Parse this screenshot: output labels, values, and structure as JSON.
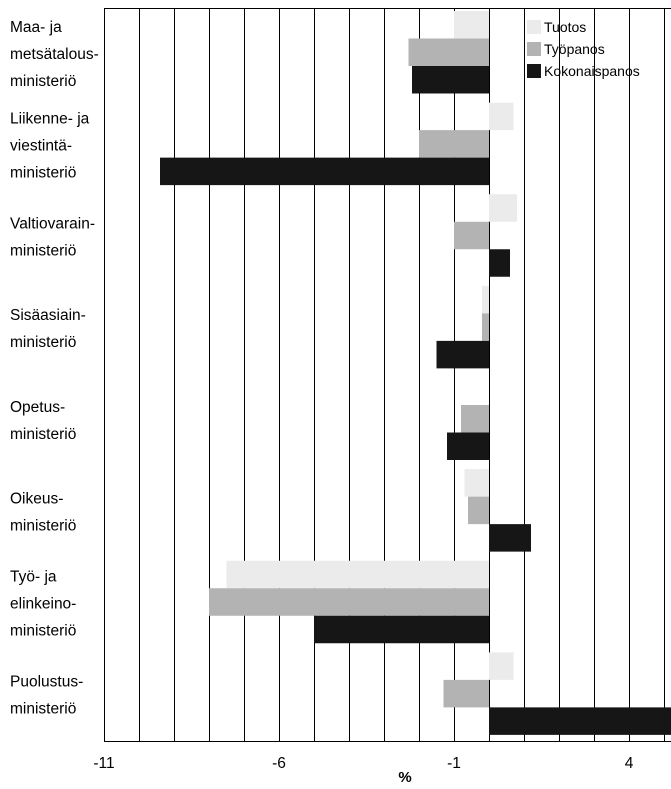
{
  "chart_data": {
    "type": "bar",
    "orientation": "horizontal",
    "categories": [
      [
        "Maa- ja",
        "metsätalous-",
        "ministeriö"
      ],
      [
        "Liikenne- ja",
        "viestintä-",
        "ministeriö"
      ],
      [
        "Valtiovarain-",
        "ministeriö"
      ],
      [
        "Sisäasiain-",
        "ministeriö"
      ],
      [
        "Opetus-",
        "ministeriö"
      ],
      [
        "Oikeus-",
        "ministeriö"
      ],
      [
        "Työ- ja",
        "elinkeino-",
        "ministeriö"
      ],
      [
        "Puolustus-",
        "ministeriö"
      ]
    ],
    "series": [
      {
        "name": "Tuotos",
        "color": "#ebebeb",
        "values": [
          -1.0,
          0.7,
          0.8,
          -0.2,
          0.0,
          -0.7,
          -7.5,
          0.7
        ]
      },
      {
        "name": "Työpanos",
        "color": "#b3b3b3",
        "values": [
          -2.3,
          -2.0,
          -1.0,
          -0.2,
          -0.8,
          -0.6,
          -8.0,
          -1.3
        ]
      },
      {
        "name": "Kokonaispanos",
        "color": "#161616",
        "values": [
          -2.2,
          -9.4,
          0.6,
          -1.5,
          -1.2,
          1.2,
          -5.0,
          5.2
        ]
      }
    ],
    "xlim": [
      -11,
      5.2
    ],
    "xticks": [
      -11,
      -6,
      -1,
      4
    ],
    "xlabel": "%",
    "ylabel": "",
    "title": "",
    "grid": "vertical lines at every unit",
    "legend_position": "top-right"
  }
}
